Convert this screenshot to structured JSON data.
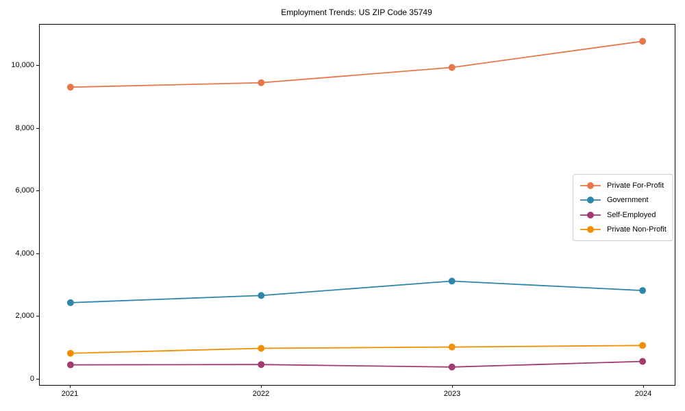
{
  "title": "Employment Trends: US ZIP Code 35749",
  "chart_data": {
    "type": "line",
    "title": "Employment Trends: US ZIP Code 35749",
    "xlabel": "",
    "ylabel": "",
    "categories": [
      "2021",
      "2022",
      "2023",
      "2024"
    ],
    "series": [
      {
        "name": "Private For-Profit",
        "color": "#E8764B",
        "values": [
          9310,
          9450,
          9940,
          10780
        ]
      },
      {
        "name": "Government",
        "color": "#2E86AB",
        "values": [
          2410,
          2640,
          3100,
          2800
        ]
      },
      {
        "name": "Self-Employed",
        "color": "#A23B72",
        "values": [
          420,
          430,
          350,
          530
        ]
      },
      {
        "name": "Private Non-Profit",
        "color": "#F18F01",
        "values": [
          790,
          950,
          990,
          1040
        ]
      }
    ],
    "yticks": [
      0,
      2000,
      4000,
      6000,
      8000,
      10000
    ],
    "ytick_labels": [
      "0",
      "2,000",
      "4,000",
      "6,000",
      "8,000",
      "10,000"
    ],
    "ylim": [
      -180,
      11310
    ],
    "grid": false,
    "legend_position": "center right",
    "marker": "circle"
  }
}
